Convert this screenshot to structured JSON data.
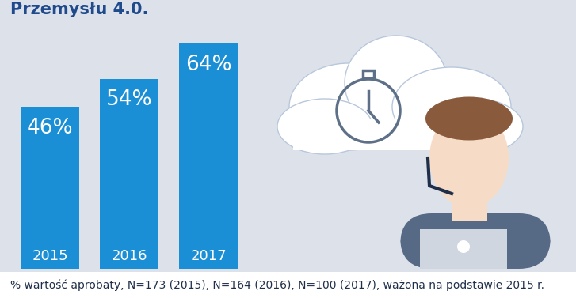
{
  "chart_data": {
    "type": "bar",
    "title": "Przemysłu 4.0.",
    "categories": [
      "2015",
      "2016",
      "2017"
    ],
    "values": [
      46,
      54,
      64
    ],
    "value_labels": [
      "46%",
      "54%",
      "64%"
    ],
    "color": "#1b8fd6",
    "ylim": [
      0,
      64
    ],
    "data_labels": true,
    "tick_labels": false,
    "grid": false,
    "footnote": "% wartość aprobaty, N=173 (2015), N=164 (2016), N=100 (2017), ważona na podstawie 2015 r."
  }
}
